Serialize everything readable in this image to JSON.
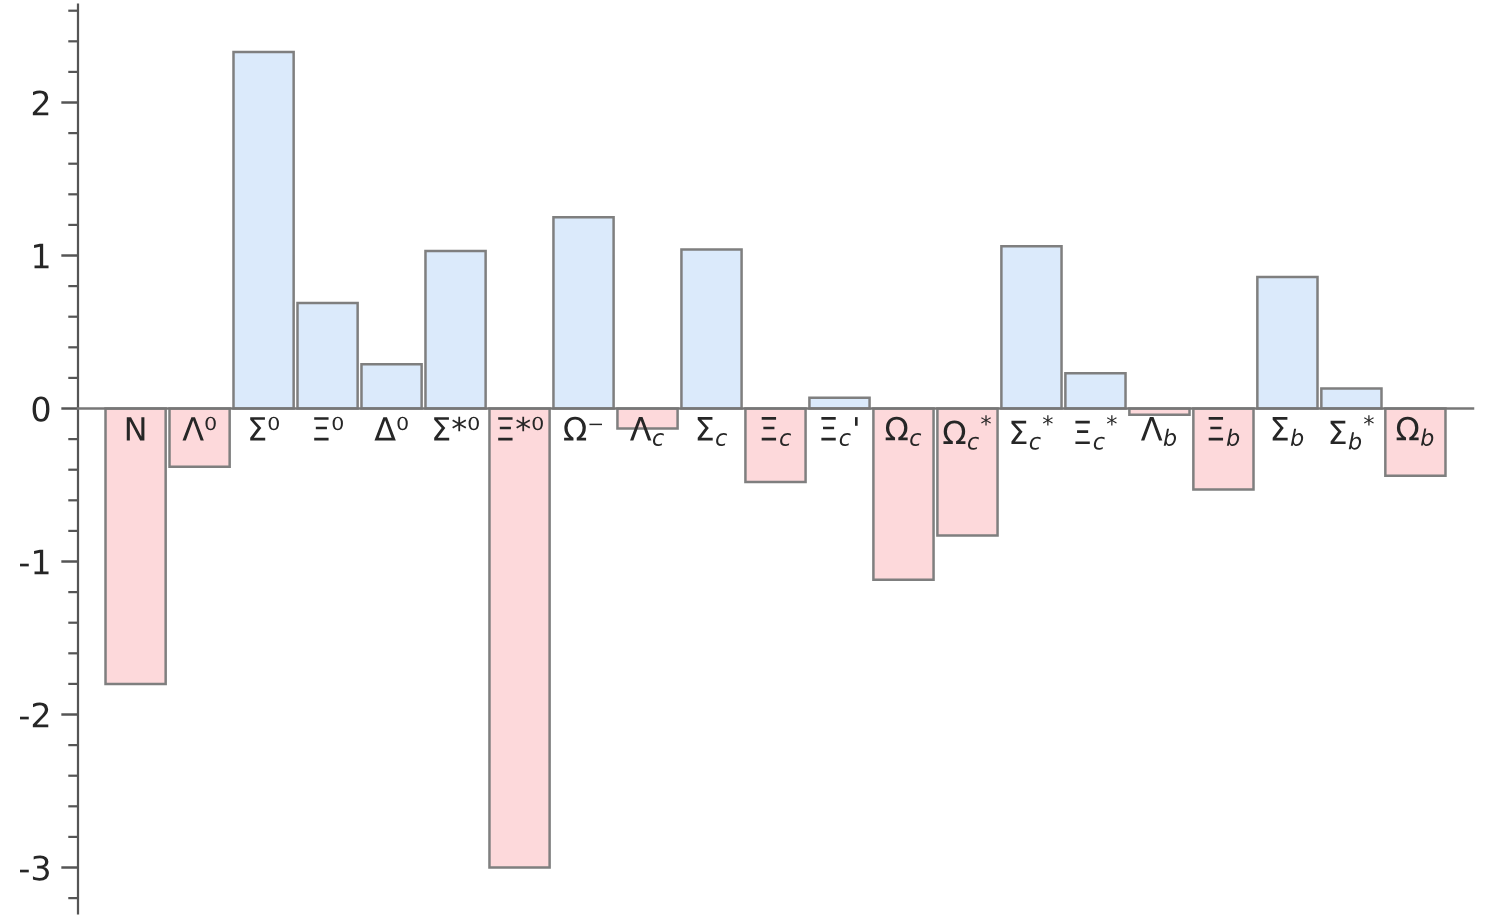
{
  "chart_data": {
    "type": "bar",
    "categories": [
      "N",
      "Λ⁰",
      "Σ⁰",
      "Ξ⁰",
      "Δ⁰",
      "Σ*⁰",
      "Ξ*⁰",
      "Ω⁻",
      "Λ$_{c}$",
      "Σ$_{c}$",
      "Ξ$_{c}$",
      "Ξ$_{c}$'",
      "Ω$_{c}$",
      "Ω$_{c}$$^{*}$",
      "Σ$_{c}$$^{*}$",
      "Ξ$_{c}$$^{*}$",
      "Λ$_{b}$",
      "Ξ$_{b}$",
      "Σ$_{b}$",
      "Σ$_{b}$$^{*}$",
      "Ω$_{b}$"
    ],
    "values": [
      -1.8,
      -0.38,
      2.33,
      0.69,
      0.29,
      1.03,
      -3.0,
      1.25,
      -0.13,
      1.04,
      -0.48,
      0.07,
      -1.12,
      -0.83,
      1.06,
      0.23,
      -0.04,
      -0.53,
      0.86,
      0.13,
      -0.44
    ],
    "colors": [
      "#fdd9db",
      "#fdd9db",
      "#dbeafb",
      "#dbeafb",
      "#dbeafb",
      "#dbeafb",
      "#fdd9db",
      "#dbeafb",
      "#fdd9db",
      "#dbeafb",
      "#fdd9db",
      "#dbeafb",
      "#fdd9db",
      "#fdd9db",
      "#dbeafb",
      "#dbeafb",
      "#fdd9db",
      "#fdd9db",
      "#dbeafb",
      "#dbeafb",
      "#fdd9db"
    ],
    "ylim": [
      -3.3,
      2.64
    ],
    "yticks": [
      -3,
      -2,
      -1,
      0,
      1,
      2
    ]
  }
}
